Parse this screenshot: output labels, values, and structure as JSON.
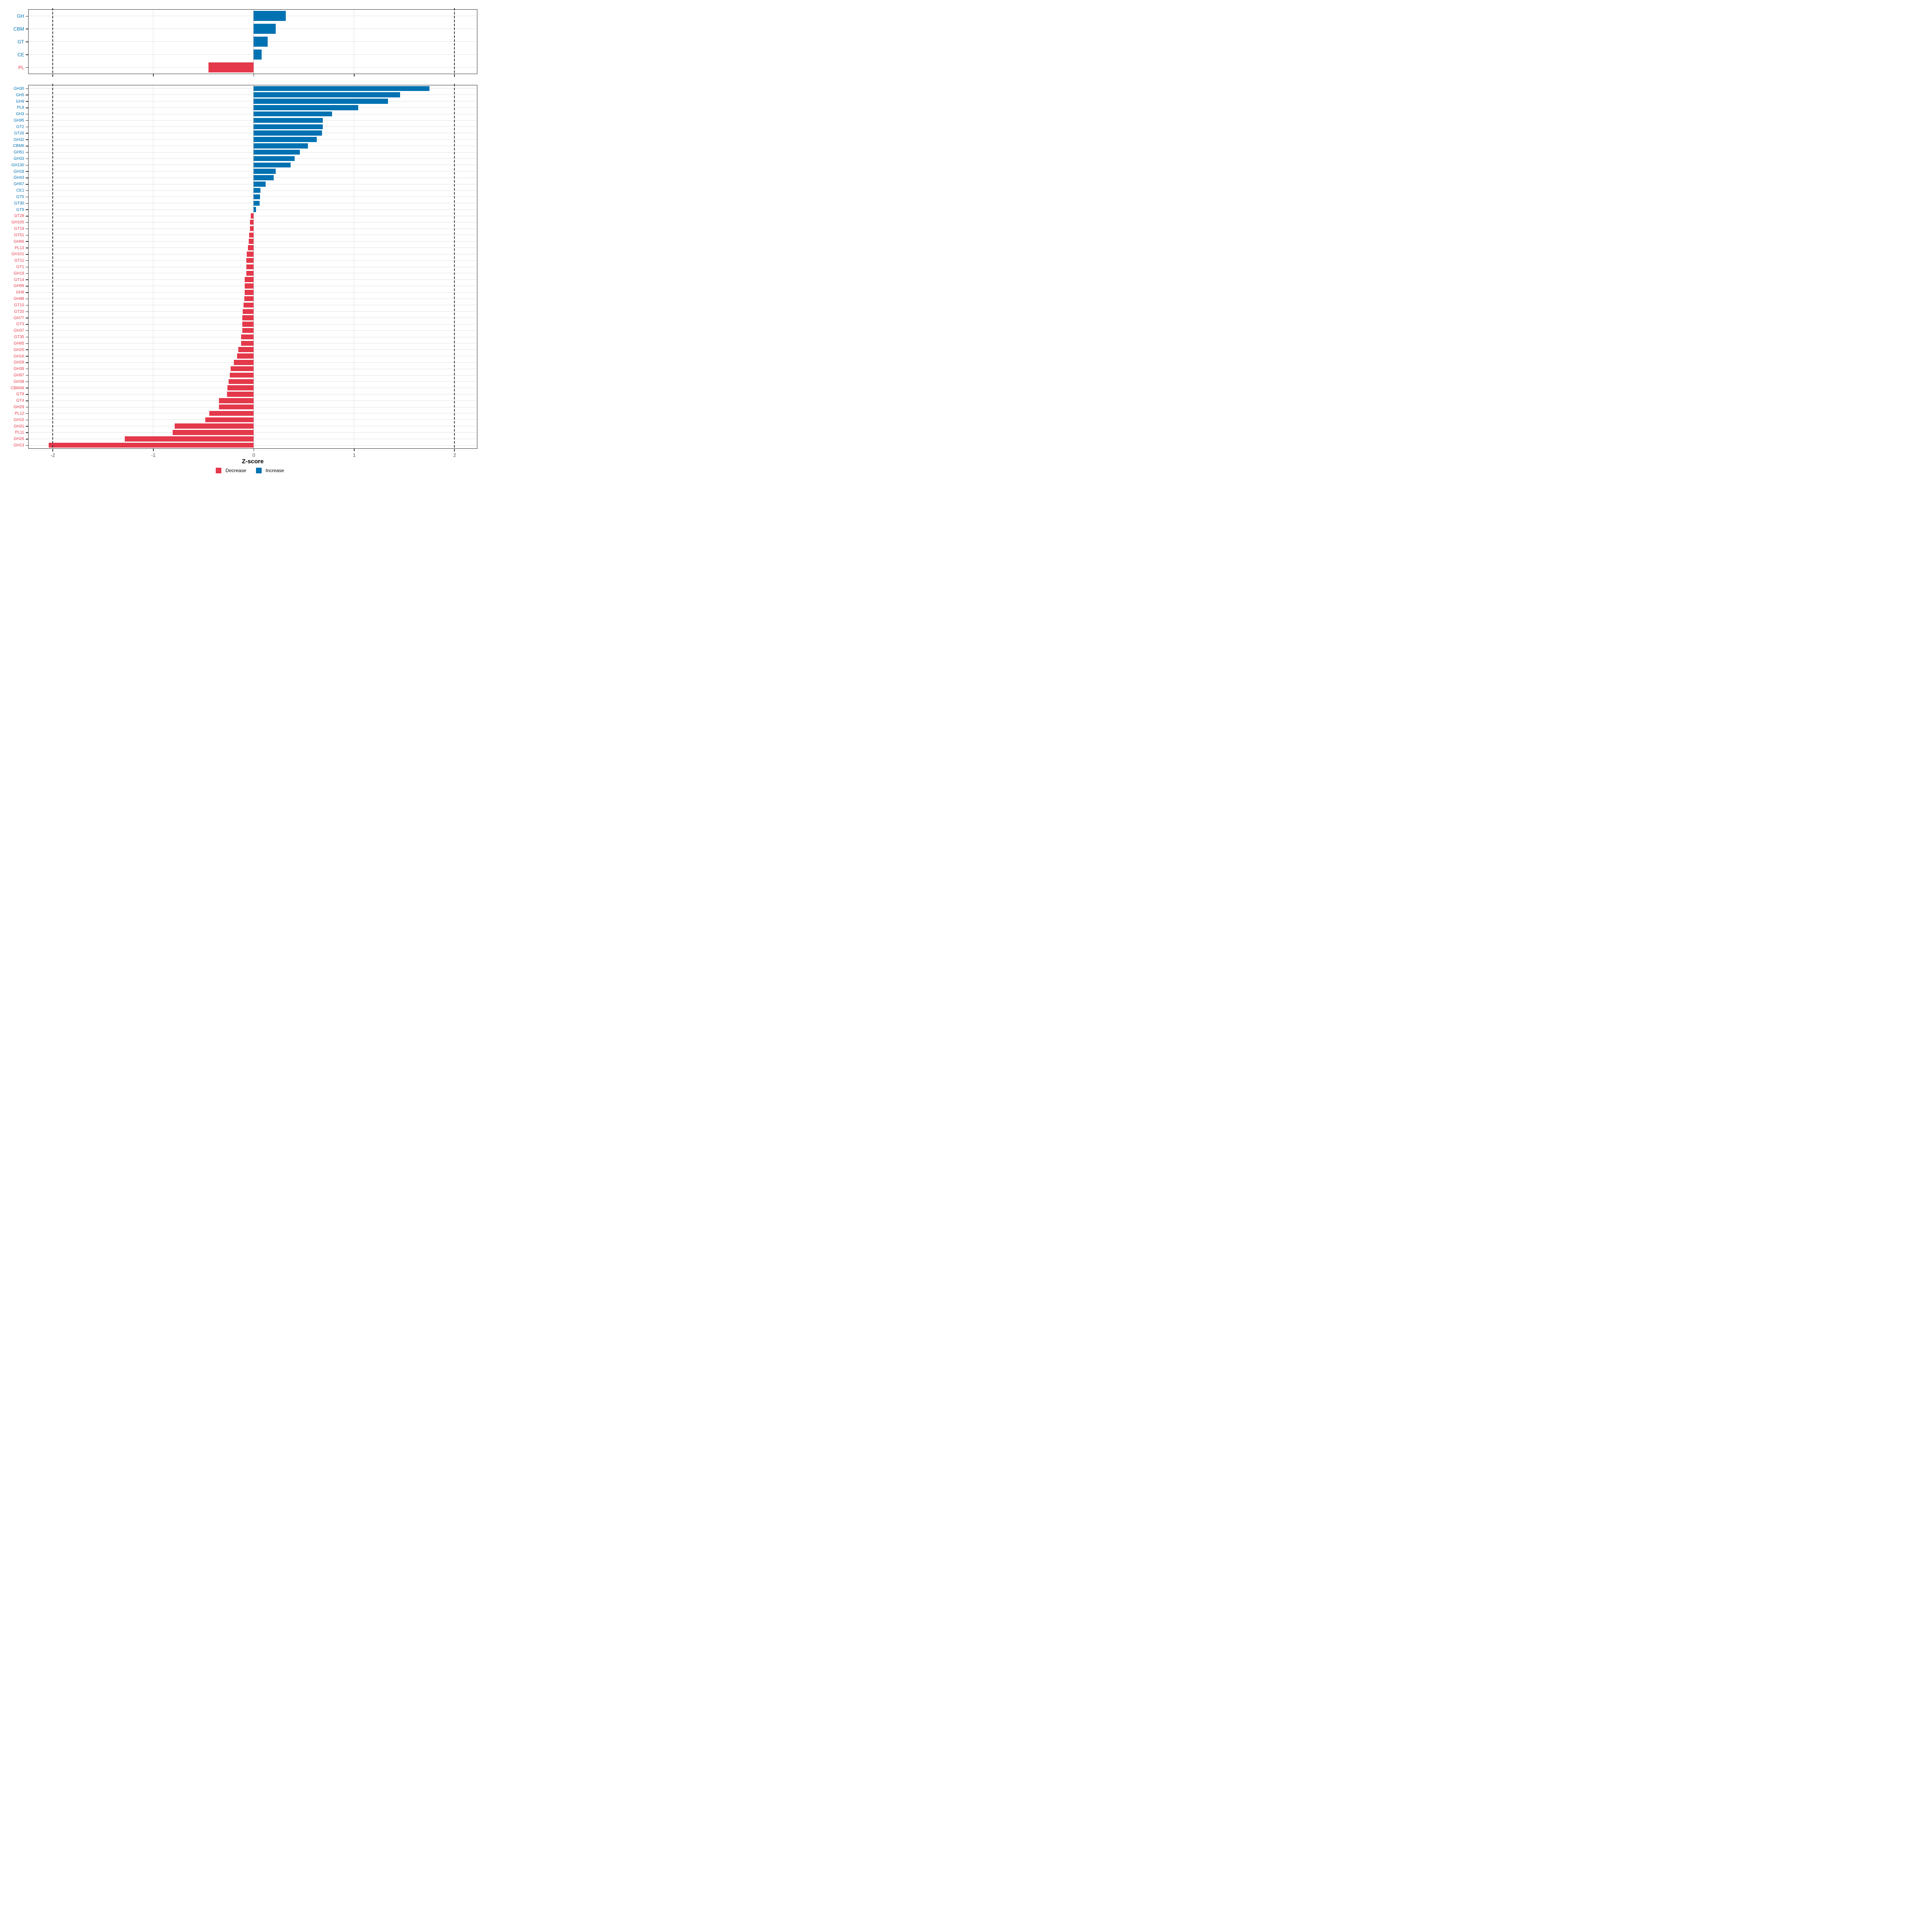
{
  "figure": {
    "background": "#ffffff"
  },
  "x_axis": {
    "label": "Z-score",
    "tick_values": [
      -2,
      -1,
      0,
      1,
      2
    ],
    "dashed_at": [
      -2,
      2
    ],
    "range": [
      -2.24,
      2.224
    ],
    "grid_color": "#e2e2e2",
    "zero_grid_color": "#d4d4d4"
  },
  "legend": {
    "items": [
      {
        "label": "Decrease",
        "key": "decrease"
      },
      {
        "label": "Increase",
        "key": "increase"
      }
    ]
  },
  "colors": {
    "increase": "#0072B2",
    "decrease": "#E4394B",
    "grid": "#e2e2e2",
    "zero_grid": "#d4d4d4",
    "border": "#333333",
    "tick_text": "#4d4d4d",
    "dashed": "#3a3a3a"
  },
  "chart_data": [
    {
      "id": "cazyme-classes",
      "type": "bar",
      "orientation": "horizontal",
      "title": "",
      "xlabel": "Z-score",
      "xlim": [
        -2.24,
        2.224
      ],
      "grid": true,
      "legend_position": "bottom",
      "categories": [
        "GH",
        "CBM",
        "GT",
        "CE",
        "PL"
      ],
      "values": [
        0.32,
        0.22,
        0.14,
        0.08,
        -0.45
      ]
    },
    {
      "id": "cazyme-families",
      "type": "bar",
      "orientation": "horizontal",
      "title": "",
      "xlabel": "Z-score",
      "xlim": [
        -2.24,
        2.224
      ],
      "grid": true,
      "legend_position": "bottom",
      "categories": [
        "GH30",
        "GH5",
        "GH9",
        "PL8",
        "GH3",
        "GH95",
        "GT2",
        "GT26",
        "GH32",
        "CBM6",
        "GH51",
        "GH33",
        "GH130",
        "GH18",
        "GH43",
        "GH57",
        "CE1",
        "GT5",
        "GT30",
        "GT9",
        "GT28",
        "GH105",
        "GT19",
        "GT51",
        "GH66",
        "PL13",
        "GH101",
        "GT11",
        "GT1",
        "GH19",
        "GT14",
        "GH99",
        "GH8",
        "GH88",
        "GT10",
        "GT20",
        "GH77",
        "GT3",
        "GH37",
        "GT35",
        "GH65",
        "GH20",
        "GH16",
        "GH28",
        "GH39",
        "GH97",
        "GH38",
        "CBM48",
        "GT8",
        "GT4",
        "GH29",
        "PL12",
        "GH15",
        "GH31",
        "PL11",
        "GH26",
        "GH13"
      ],
      "values": [
        1.75,
        1.46,
        1.34,
        1.04,
        0.78,
        0.69,
        0.69,
        0.68,
        0.63,
        0.54,
        0.46,
        0.41,
        0.37,
        0.22,
        0.2,
        0.12,
        0.07,
        0.065,
        0.06,
        0.025,
        -0.027,
        -0.037,
        -0.038,
        -0.046,
        -0.05,
        -0.056,
        -0.068,
        -0.071,
        -0.073,
        -0.074,
        -0.087,
        -0.088,
        -0.089,
        -0.091,
        -0.101,
        -0.109,
        -0.111,
        -0.112,
        -0.113,
        -0.125,
        -0.126,
        -0.151,
        -0.163,
        -0.196,
        -0.228,
        -0.235,
        -0.25,
        -0.261,
        -0.266,
        -0.343,
        -0.345,
        -0.442,
        -0.48,
        -0.784,
        -0.805,
        -1.284,
        -2.04
      ]
    }
  ]
}
